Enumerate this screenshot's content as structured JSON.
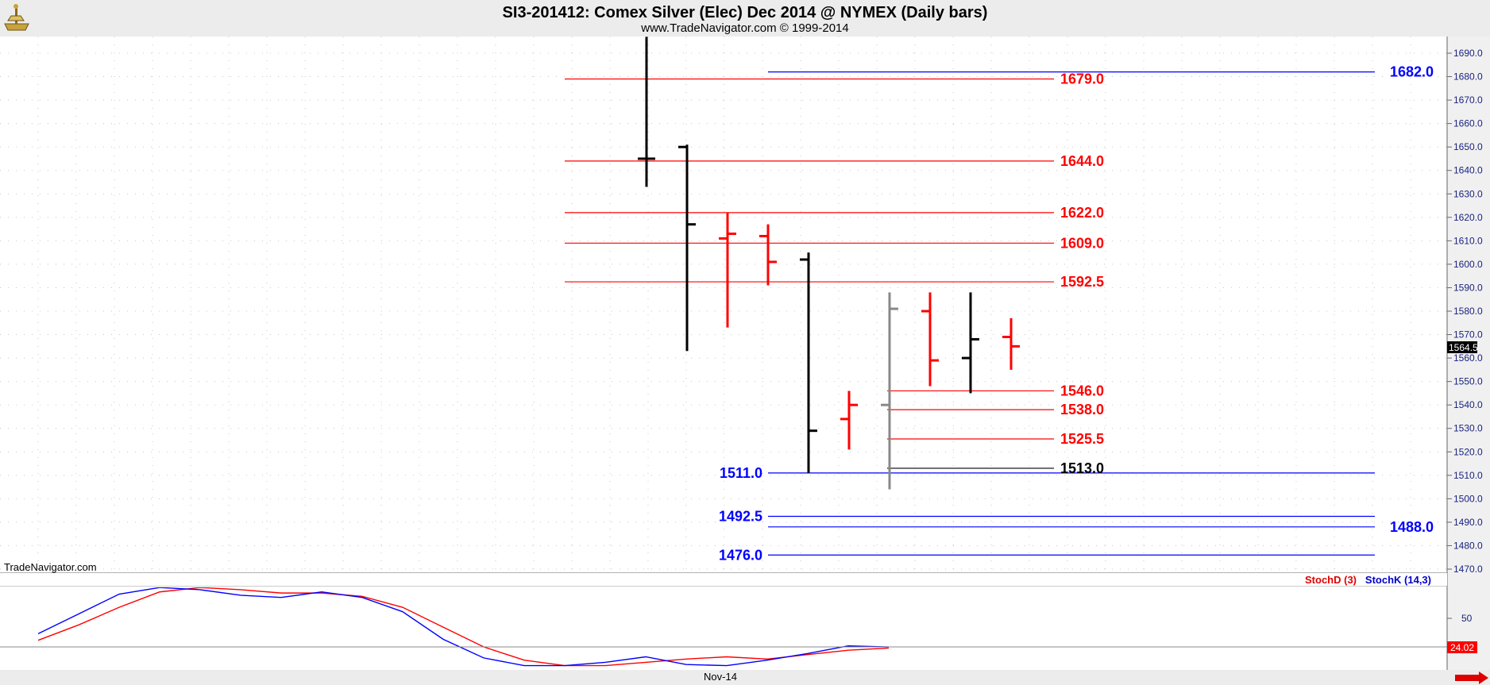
{
  "header": {
    "title": "SI3-201412:  Comex Silver (Elec) Dec 2014 @ NYMEX  (Daily bars)",
    "subtitle": "www.TradeNavigator.com © 1999-2014"
  },
  "watermark": "TradeNavigator.com",
  "x_axis_label": "Nov-14",
  "last_price_tag": "1564.5",
  "oscillator_level_label": "50",
  "oscillator_value_tag": "24.02",
  "colors": {
    "up": "#ff0000",
    "down": "#000000",
    "neutral": "#888888",
    "blue": "#0000ff",
    "axis_text": "#1a237e",
    "grid": "#c8c8c8"
  },
  "chart_data": {
    "type": "ohlc",
    "y_range": [
      1465,
      1697
    ],
    "y_ticks": [
      "1690.0",
      "1680.0",
      "1670.0",
      "1660.0",
      "1650.0",
      "1640.0",
      "1630.0",
      "1620.0",
      "1610.0",
      "1600.0",
      "1590.0",
      "1580.0",
      "1570.0",
      "1560.0",
      "1550.0",
      "1540.0",
      "1530.0",
      "1520.0",
      "1510.0",
      "1500.0",
      "1490.0",
      "1480.0",
      "1470.0"
    ],
    "bars": [
      {
        "open": 1645,
        "high": 1697,
        "low": 1633,
        "close": 1645,
        "color": "black"
      },
      {
        "open": 1650,
        "high": 1651,
        "low": 1563,
        "close": 1617,
        "color": "black"
      },
      {
        "open": 1611,
        "high": 1622,
        "low": 1573,
        "close": 1613,
        "color": "red"
      },
      {
        "open": 1612,
        "high": 1617,
        "low": 1591,
        "close": 1601,
        "color": "red"
      },
      {
        "open": 1602,
        "high": 1605,
        "low": 1511,
        "close": 1529,
        "color": "black"
      },
      {
        "open": 1534,
        "high": 1546,
        "low": 1521,
        "close": 1540,
        "color": "red"
      },
      {
        "open": 1540,
        "high": 1588,
        "low": 1504,
        "close": 1581,
        "color": "gray"
      },
      {
        "open": 1580,
        "high": 1588,
        "low": 1548,
        "close": 1559,
        "color": "red"
      },
      {
        "open": 1560,
        "high": 1588,
        "low": 1545,
        "close": 1568,
        "color": "black"
      },
      {
        "open": 1569,
        "high": 1577,
        "low": 1555,
        "close": 1565,
        "color": "red"
      }
    ],
    "levels": [
      {
        "value": 1682.0,
        "label": "1682.0",
        "color": "blue",
        "side": "right"
      },
      {
        "value": 1679.0,
        "label": "1679.0",
        "color": "red",
        "side": "mid"
      },
      {
        "value": 1644.0,
        "label": "1644.0",
        "color": "red",
        "side": "mid"
      },
      {
        "value": 1622.0,
        "label": "1622.0",
        "color": "red",
        "side": "mid"
      },
      {
        "value": 1609.0,
        "label": "1609.0",
        "color": "red",
        "side": "mid"
      },
      {
        "value": 1592.5,
        "label": "1592.5",
        "color": "red",
        "side": "mid"
      },
      {
        "value": 1546.0,
        "label": "1546.0",
        "color": "red",
        "side": "mid"
      },
      {
        "value": 1538.0,
        "label": "1538.0",
        "color": "red",
        "side": "mid"
      },
      {
        "value": 1525.5,
        "label": "1525.5",
        "color": "red",
        "side": "mid"
      },
      {
        "value": 1513.0,
        "label": "1513.0",
        "color": "black",
        "side": "mid"
      },
      {
        "value": 1511.0,
        "label": "1511.0",
        "color": "blue",
        "side": "left"
      },
      {
        "value": 1492.5,
        "label": "1492.5",
        "color": "blue",
        "side": "left"
      },
      {
        "value": 1488.0,
        "label": "1488.0",
        "color": "blue",
        "side": "right"
      },
      {
        "value": 1476.0,
        "label": "1476.0",
        "color": "blue",
        "side": "left"
      }
    ],
    "oscillator": {
      "y_range": [
        0,
        100
      ],
      "reference_level": 50,
      "series": [
        {
          "name": "StochD (3)",
          "color": "red",
          "values": [
            30,
            44,
            60,
            74,
            78,
            76,
            73,
            73,
            70,
            60,
            42,
            24,
            12,
            7,
            7,
            10,
            13,
            15,
            13,
            17,
            21,
            23
          ]
        },
        {
          "name": "StochK (14,3)",
          "color": "blue",
          "values": [
            36,
            54,
            72,
            78,
            76,
            71,
            69,
            74,
            69,
            56,
            31,
            14,
            7,
            7,
            10,
            15,
            8,
            7,
            12,
            18,
            25,
            24
          ]
        }
      ]
    }
  }
}
